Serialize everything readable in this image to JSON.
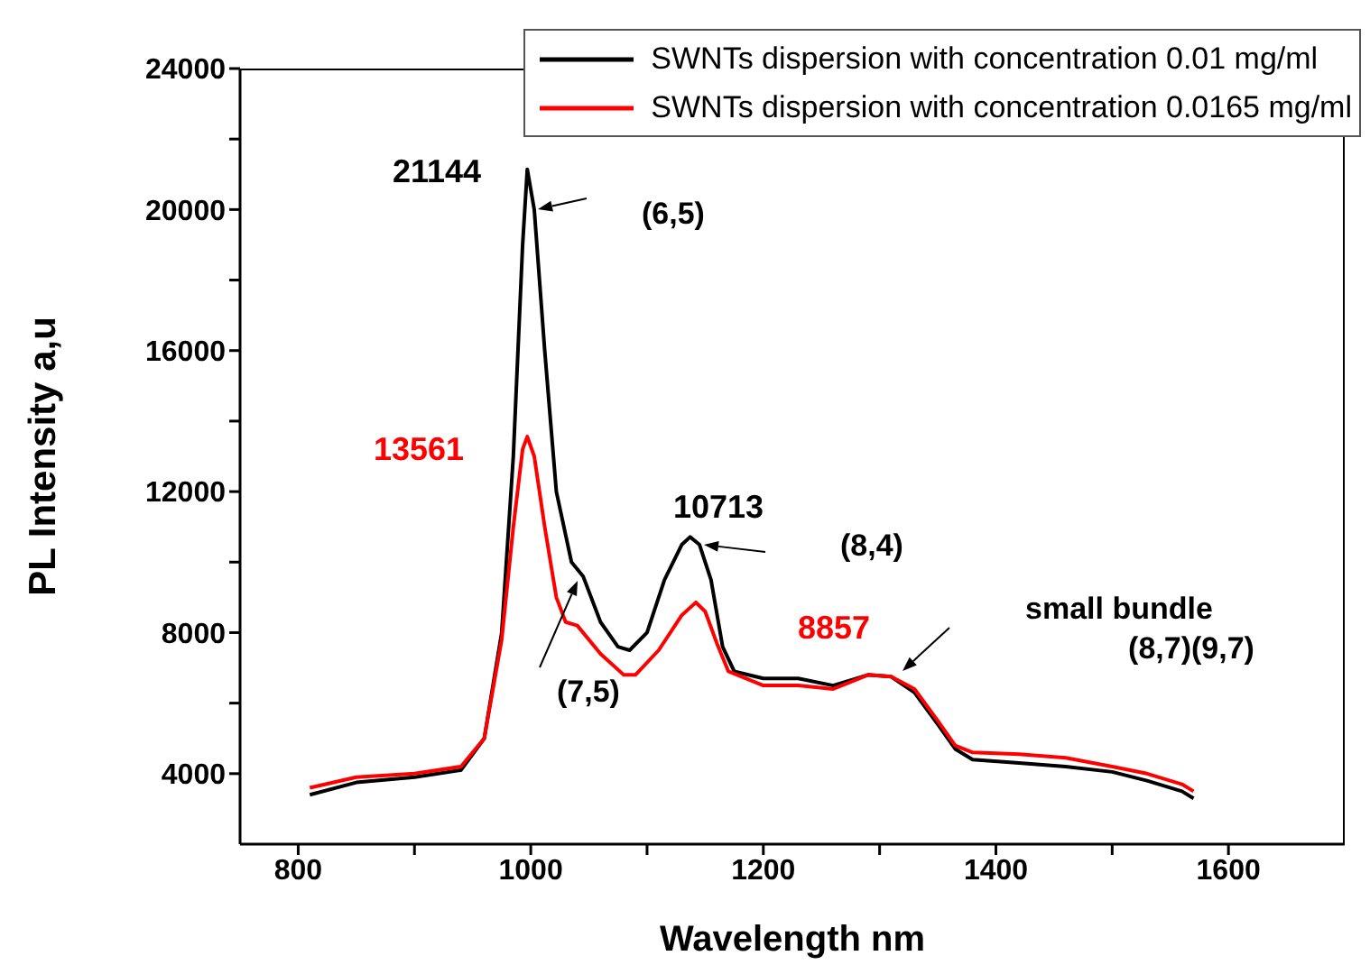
{
  "chart_data": {
    "type": "line",
    "xlabel": "Wavelength nm",
    "ylabel": "PL Intensity a,u",
    "legend": "top right",
    "grid": false,
    "marker": "none",
    "line_style": "solid",
    "xlim": [
      750,
      1700
    ],
    "ylim": [
      2000,
      24000
    ],
    "xticks": [
      800,
      {
        "value": 900,
        "label": null
      },
      1000,
      {
        "value": 1100,
        "label": null
      },
      1200,
      {
        "value": 1300,
        "label": null
      },
      1400,
      {
        "value": 1500,
        "label": null
      },
      1600
    ],
    "yticks": [
      4000,
      {
        "value": 6000,
        "label": null
      },
      8000,
      {
        "value": 10000,
        "label": null
      },
      12000,
      {
        "value": 14000,
        "label": null
      },
      16000,
      {
        "value": 18000,
        "label": null
      },
      20000,
      {
        "value": 22000,
        "label": null
      },
      24000
    ],
    "series": [
      {
        "name": "SWNTs dispersion with concentration 0.01 mg/ml",
        "color": "#000000",
        "x": [
          810,
          850,
          900,
          940,
          960,
          975,
          985,
          993,
          997,
          1003,
          1012,
          1022,
          1035,
          1045,
          1060,
          1075,
          1085,
          1100,
          1115,
          1130,
          1137,
          1145,
          1155,
          1165,
          1175,
          1200,
          1230,
          1260,
          1290,
          1310,
          1330,
          1350,
          1365,
          1380,
          1420,
          1460,
          1500,
          1530,
          1560,
          1570
        ],
        "values": [
          3400,
          3750,
          3900,
          4100,
          5000,
          8000,
          13000,
          19000,
          21144,
          20000,
          16000,
          12000,
          10000,
          9600,
          8300,
          7600,
          7500,
          8000,
          9500,
          10500,
          10713,
          10500,
          9500,
          7600,
          6900,
          6700,
          6700,
          6500,
          6800,
          6750,
          6300,
          5400,
          4700,
          4400,
          4300,
          4200,
          4050,
          3800,
          3500,
          3300
        ]
      },
      {
        "name": "SWNTs dispersion with concentration 0.0165 mg/ml",
        "color": "#ff0000",
        "x": [
          810,
          850,
          900,
          940,
          960,
          975,
          985,
          993,
          997,
          1003,
          1012,
          1022,
          1030,
          1040,
          1060,
          1080,
          1090,
          1110,
          1130,
          1142,
          1150,
          1160,
          1170,
          1200,
          1230,
          1260,
          1290,
          1310,
          1330,
          1350,
          1365,
          1380,
          1420,
          1460,
          1500,
          1530,
          1560,
          1570
        ],
        "values": [
          3600,
          3900,
          4000,
          4200,
          5000,
          7800,
          11000,
          13200,
          13561,
          13000,
          11000,
          9000,
          8300,
          8200,
          7400,
          6800,
          6800,
          7500,
          8500,
          8857,
          8600,
          7700,
          6900,
          6500,
          6500,
          6400,
          6800,
          6750,
          6400,
          5500,
          4800,
          4600,
          4550,
          4450,
          4200,
          4000,
          3700,
          3500
        ]
      }
    ],
    "annotations": [
      "21144",
      "(6,5)",
      "13561",
      "(7,5)",
      "10713",
      "(8,4)",
      "8857",
      "small bundle\n(8,7)(9,7)"
    ]
  }
}
